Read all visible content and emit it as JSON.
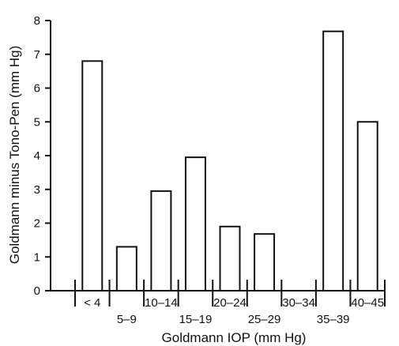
{
  "chart_data": {
    "type": "bar",
    "xlabel": "Goldmann IOP (mm Hg)",
    "ylabel": "Goldmann minus Tono-Pen (mm Hg)",
    "ylim": [
      0,
      8
    ],
    "yticks": [
      0,
      1,
      2,
      3,
      4,
      5,
      6,
      7,
      8
    ],
    "grid": false,
    "categories": [
      "< 4",
      "5–9",
      "10–14",
      "15–19",
      "20–24",
      "25–29",
      "30–34",
      "35–39",
      "40–45"
    ],
    "values": [
      6.8,
      1.3,
      2.95,
      3.95,
      1.9,
      1.68,
      null,
      7.68,
      5.0
    ]
  }
}
